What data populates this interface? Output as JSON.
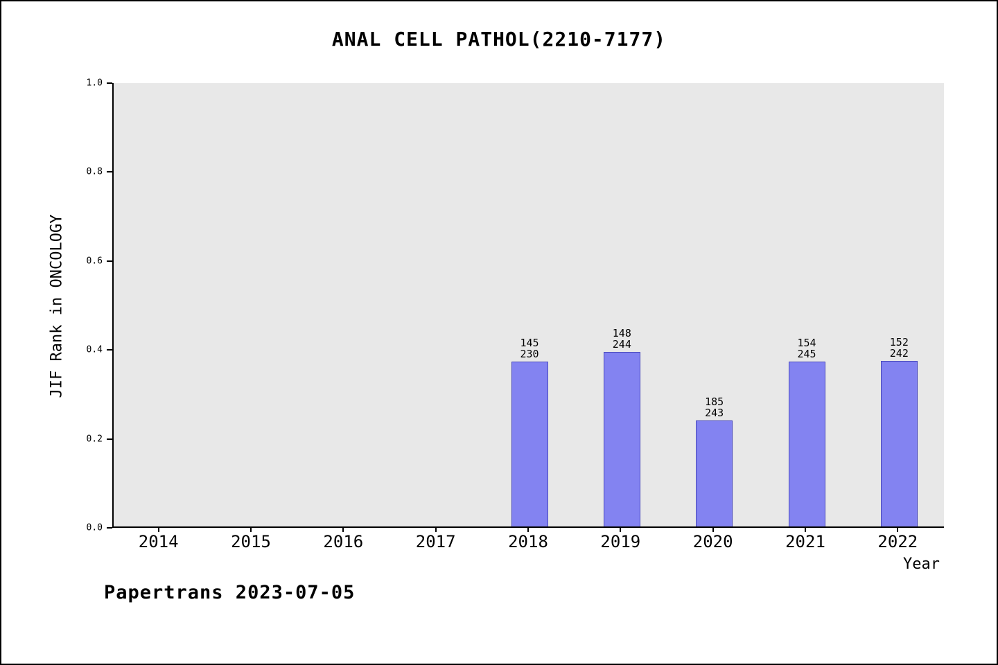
{
  "footer": "Papertrans 2023-07-05",
  "chart_data": {
    "type": "bar",
    "title": "ANAL CELL PATHOL(2210-7177)",
    "xlabel": "Year",
    "ylabel": "JIF Rank in ONCOLOGY",
    "categories": [
      "2014",
      "2015",
      "2016",
      "2017",
      "2018",
      "2019",
      "2020",
      "2021",
      "2022"
    ],
    "y_ticks": [
      "0.0",
      "0.2",
      "0.4",
      "0.6",
      "0.8",
      "1.0"
    ],
    "ylim": [
      0,
      1
    ],
    "grid": "off",
    "legend": "none",
    "plot_bg": "#e8e8e8",
    "bar_color": "#8383f1",
    "bar_border_color": "#4646bb",
    "bars": [
      {
        "year": "2018",
        "rank": 145,
        "total": 230,
        "value": 0.37
      },
      {
        "year": "2019",
        "rank": 148,
        "total": 244,
        "value": 0.393
      },
      {
        "year": "2020",
        "rank": 185,
        "total": 243,
        "value": 0.239
      },
      {
        "year": "2021",
        "rank": 154,
        "total": 245,
        "value": 0.371
      },
      {
        "year": "2022",
        "rank": 152,
        "total": 242,
        "value": 0.372
      }
    ]
  }
}
